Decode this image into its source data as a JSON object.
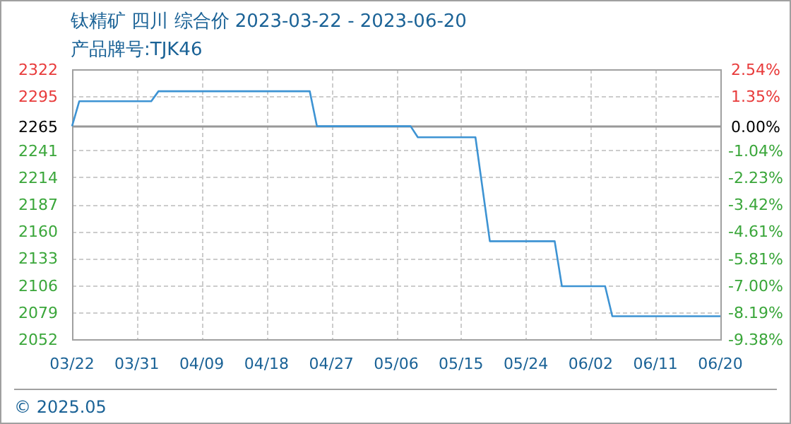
{
  "chart_data": {
    "type": "line",
    "title": "钛精矿 四川 综合价 2023-03-22 - 2023-06-20",
    "subtitle": "产品牌号:TJK46",
    "annotations": [
      "© 2025.05"
    ],
    "xlim": [
      "2023-03-22",
      "2023-06-20"
    ],
    "xticks": [
      {
        "value": "2023-03-22",
        "label": "03/22"
      },
      {
        "value": "2023-03-31",
        "label": "03/31"
      },
      {
        "value": "2023-04-09",
        "label": "04/09"
      },
      {
        "value": "2023-04-18",
        "label": "04/18"
      },
      {
        "value": "2023-04-27",
        "label": "04/27"
      },
      {
        "value": "2023-05-06",
        "label": "05/06"
      },
      {
        "value": "2023-05-15",
        "label": "05/15"
      },
      {
        "value": "2023-05-24",
        "label": "05/24"
      },
      {
        "value": "2023-06-02",
        "label": "06/02"
      },
      {
        "value": "2023-06-11",
        "label": "06/11"
      },
      {
        "value": "2023-06-20",
        "label": "06/20"
      }
    ],
    "ylim": [
      2052,
      2322
    ],
    "yticks": [
      2052,
      2079,
      2106,
      2133,
      2160,
      2187,
      2214,
      2241,
      2265,
      2295,
      2322
    ],
    "y2lim": [
      -9.38,
      2.54
    ],
    "y2ticks": [
      {
        "value": -9.38,
        "label": "-9.38%"
      },
      {
        "value": -8.19,
        "label": "-8.19%"
      },
      {
        "value": -7.0,
        "label": "-7.00%"
      },
      {
        "value": -5.81,
        "label": "-5.81%"
      },
      {
        "value": -4.61,
        "label": "-4.61%"
      },
      {
        "value": -3.42,
        "label": "-3.42%"
      },
      {
        "value": -2.23,
        "label": "-2.23%"
      },
      {
        "value": -1.04,
        "label": "-1.04%"
      },
      {
        "value": 0,
        "label": "0.00%"
      },
      {
        "value": 1.35,
        "label": "1.35%"
      },
      {
        "value": 2.54,
        "label": "2.54%"
      }
    ],
    "grid": true,
    "marker": "none",
    "line_style": "solid",
    "ref_lines": [
      {
        "axis": "y",
        "value": 2265,
        "color": "#999999"
      }
    ],
    "series": [
      {
        "color": "#3d93d3",
        "x": [
          "2023-03-22",
          "2023-03-23",
          "2023-04-02",
          "2023-04-03",
          "2023-04-24",
          "2023-04-25",
          "2023-05-08",
          "2023-05-09",
          "2023-05-17",
          "2023-05-19",
          "2023-05-28",
          "2023-05-29",
          "2023-06-04",
          "2023-06-05",
          "2023-06-20"
        ],
        "values": [
          2265,
          2290,
          2290,
          2300,
          2300,
          2265,
          2265,
          2254,
          2254,
          2150,
          2150,
          2105,
          2105,
          2075,
          2075
        ]
      }
    ]
  }
}
